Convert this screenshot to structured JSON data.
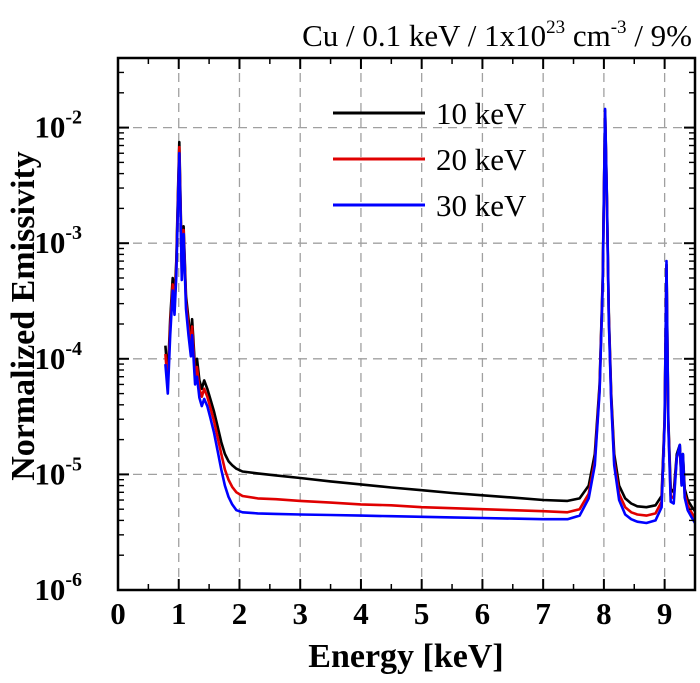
{
  "chart_data": {
    "type": "line",
    "title": "Cu / 0.1 keV / 1x10²³ cm⁻³ / 9%",
    "title_parts": {
      "pre": "Cu / 0.1 keV / 1x10",
      "exp1": "23",
      "mid": " cm",
      "exp2": "-3",
      "post": " / 9%"
    },
    "xlabel": "Energy [keV]",
    "ylabel": "Normalized Emissivity",
    "xlim": [
      0,
      9.5
    ],
    "ylim": [
      1e-06,
      0.04
    ],
    "yscale": "log",
    "grid": true,
    "legend_position": "top-right",
    "x_ticks": [
      0,
      1,
      2,
      3,
      4,
      5,
      6,
      7,
      8,
      9
    ],
    "y_ticks": [
      {
        "value": 1e-06,
        "base": "10",
        "exp": "-6"
      },
      {
        "value": 1e-05,
        "base": "10",
        "exp": "-5"
      },
      {
        "value": 0.0001,
        "base": "10",
        "exp": "-4"
      },
      {
        "value": 0.001,
        "base": "10",
        "exp": "-3"
      },
      {
        "value": 0.01,
        "base": "10",
        "exp": "-2"
      }
    ],
    "series": [
      {
        "name": "10 keV",
        "color": "#000000",
        "x": [
          0.78,
          0.82,
          0.86,
          0.9,
          0.93,
          0.96,
          0.99,
          1.01,
          1.03,
          1.05,
          1.08,
          1.12,
          1.16,
          1.2,
          1.22,
          1.24,
          1.27,
          1.3,
          1.34,
          1.38,
          1.42,
          1.47,
          1.52,
          1.58,
          1.64,
          1.7,
          1.76,
          1.82,
          1.88,
          1.95,
          2.05,
          2.3,
          2.6,
          3.0,
          3.5,
          4.0,
          4.5,
          5.0,
          5.5,
          6.0,
          6.5,
          7.0,
          7.4,
          7.6,
          7.75,
          7.85,
          7.93,
          7.98,
          8.02,
          8.05,
          8.08,
          8.12,
          8.17,
          8.25,
          8.35,
          8.45,
          8.55,
          8.7,
          8.85,
          8.95,
          9.0,
          9.03,
          9.06,
          9.1,
          9.15,
          9.2,
          9.25,
          9.28,
          9.3,
          9.33,
          9.38,
          9.45,
          9.5
        ],
        "y": [
          0.00013,
          7e-05,
          0.00022,
          0.0005,
          0.00032,
          0.0007,
          0.003,
          0.0075,
          0.0022,
          0.0006,
          0.0014,
          0.00035,
          0.00022,
          0.00014,
          0.00022,
          0.00015,
          8e-05,
          0.0001,
          6.5e-05,
          5.5e-05,
          6.5e-05,
          5.5e-05,
          4.5e-05,
          3.5e-05,
          2.6e-05,
          1.9e-05,
          1.5e-05,
          1.3e-05,
          1.2e-05,
          1.12e-05,
          1.06e-05,
          1.02e-05,
          9.8e-06,
          9.3e-06,
          8.7e-06,
          8.2e-06,
          7.7e-06,
          7.3e-06,
          6.9e-06,
          6.6e-06,
          6.3e-06,
          6e-06,
          5.9e-06,
          6.2e-06,
          8e-06,
          1.5e-05,
          6e-05,
          0.0005,
          0.014,
          0.0025,
          0.00025,
          5e-05,
          1.5e-05,
          8e-06,
          6.2e-06,
          5.6e-06,
          5.3e-06,
          5.2e-06,
          5.4e-06,
          6.5e-06,
          3e-05,
          0.00065,
          3e-05,
          7.5e-06,
          7e-06,
          1.5e-05,
          1.8e-05,
          9e-06,
          1.5e-05,
          7.5e-06,
          6e-06,
          5.2e-06,
          4.8e-06
        ]
      },
      {
        "name": "20 keV",
        "color": "#e00000",
        "x": [
          0.78,
          0.82,
          0.86,
          0.9,
          0.93,
          0.96,
          0.99,
          1.01,
          1.03,
          1.05,
          1.08,
          1.12,
          1.16,
          1.2,
          1.22,
          1.24,
          1.27,
          1.3,
          1.34,
          1.38,
          1.42,
          1.47,
          1.52,
          1.58,
          1.64,
          1.7,
          1.76,
          1.82,
          1.88,
          1.95,
          2.05,
          2.3,
          2.6,
          3.0,
          3.5,
          4.0,
          4.5,
          5.0,
          5.5,
          6.0,
          6.5,
          7.0,
          7.4,
          7.6,
          7.75,
          7.85,
          7.93,
          7.98,
          8.02,
          8.05,
          8.08,
          8.12,
          8.17,
          8.25,
          8.35,
          8.45,
          8.55,
          8.7,
          8.85,
          8.95,
          9.0,
          9.03,
          9.06,
          9.1,
          9.15,
          9.2,
          9.25,
          9.28,
          9.3,
          9.33,
          9.38,
          9.45,
          9.5
        ],
        "y": [
          0.00011,
          6e-05,
          0.00019,
          0.00044,
          0.00028,
          0.0006,
          0.0027,
          0.0068,
          0.002,
          0.00054,
          0.0013,
          0.00031,
          0.00019,
          0.00012,
          0.00019,
          0.00013,
          7e-05,
          8.5e-05,
          5.5e-05,
          4.7e-05,
          5.5e-05,
          4.7e-05,
          3.8e-05,
          2.9e-05,
          2.1e-05,
          1.5e-05,
          1.1e-05,
          9e-06,
          7.8e-06,
          7e-06,
          6.5e-06,
          6.2e-06,
          6.1e-06,
          5.9e-06,
          5.7e-06,
          5.5e-06,
          5.4e-06,
          5.2e-06,
          5.1e-06,
          5e-06,
          4.9e-06,
          4.8e-06,
          4.7e-06,
          5e-06,
          6.8e-06,
          1.3e-05,
          5.5e-05,
          0.00046,
          0.0135,
          0.0023,
          0.00023,
          4.6e-05,
          1.3e-05,
          6.8e-06,
          5.2e-06,
          4.7e-06,
          4.5e-06,
          4.4e-06,
          4.6e-06,
          5.8e-06,
          2.8e-05,
          0.00062,
          2.8e-05,
          6.5e-06,
          6.2e-06,
          1.4e-05,
          1.7e-05,
          8.3e-06,
          1.4e-05,
          6.8e-06,
          5.4e-06,
          4.6e-06,
          4.2e-06
        ]
      },
      {
        "name": "30 keV",
        "color": "#0000ff",
        "x": [
          0.78,
          0.82,
          0.86,
          0.9,
          0.93,
          0.96,
          0.99,
          1.01,
          1.03,
          1.05,
          1.08,
          1.12,
          1.16,
          1.2,
          1.22,
          1.24,
          1.27,
          1.3,
          1.34,
          1.38,
          1.42,
          1.47,
          1.52,
          1.58,
          1.64,
          1.7,
          1.76,
          1.82,
          1.88,
          1.95,
          2.05,
          2.3,
          2.6,
          3.0,
          3.5,
          4.0,
          4.5,
          5.0,
          5.5,
          6.0,
          6.5,
          7.0,
          7.4,
          7.6,
          7.75,
          7.85,
          7.93,
          7.98,
          8.02,
          8.05,
          8.08,
          8.12,
          8.17,
          8.25,
          8.35,
          8.45,
          8.55,
          8.7,
          8.85,
          8.95,
          9.0,
          9.03,
          9.06,
          9.1,
          9.15,
          9.2,
          9.25,
          9.28,
          9.3,
          9.33,
          9.38,
          9.45,
          9.5
        ],
        "y": [
          9e-05,
          5e-05,
          0.00016,
          0.00039,
          0.00024,
          0.00052,
          0.0024,
          0.006,
          0.0018,
          0.00048,
          0.0012,
          0.00027,
          0.00016,
          0.000105,
          0.00016,
          0.00011,
          6e-05,
          7e-05,
          4.6e-05,
          3.9e-05,
          4.5e-05,
          3.9e-05,
          3.1e-05,
          2.3e-05,
          1.6e-05,
          1.1e-05,
          8e-06,
          6.4e-06,
          5.5e-06,
          4.9e-06,
          4.7e-06,
          4.6e-06,
          4.55e-06,
          4.5e-06,
          4.45e-06,
          4.4e-06,
          4.35e-06,
          4.3e-06,
          4.25e-06,
          4.2e-06,
          4.15e-06,
          4.1e-06,
          4.1e-06,
          4.4e-06,
          6.2e-06,
          1.2e-05,
          5.2e-05,
          0.00043,
          0.0145,
          0.0024,
          0.00022,
          4.3e-05,
          1.2e-05,
          6e-06,
          4.5e-06,
          4.1e-06,
          3.9e-06,
          3.8e-06,
          4e-06,
          5.2e-06,
          2.7e-05,
          0.0007,
          2.7e-05,
          5.8e-06,
          5.6e-06,
          1.4e-05,
          1.8e-05,
          8e-06,
          1.5e-05,
          6.3e-06,
          4.9e-06,
          4.2e-06,
          3.8e-06
        ]
      }
    ]
  }
}
